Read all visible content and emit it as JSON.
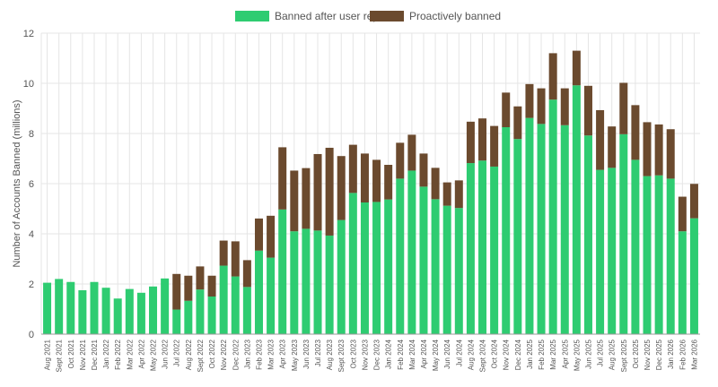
{
  "chart_data": {
    "type": "bar",
    "stacked": true,
    "ylabel": "Number of Accounts Banned (millions)",
    "xlabel": "",
    "title": "",
    "ylim": [
      0,
      12
    ],
    "yticks": [
      0,
      2,
      4,
      6,
      8,
      10,
      12
    ],
    "grid": true,
    "legend_position": "top-center",
    "colors": {
      "reports": "#2ecc71",
      "proactive": "#6b4a2e",
      "grid": "#e5e5e5",
      "axis": "#999999"
    },
    "categories": [
      "Aug 2021",
      "Sept 2021",
      "Oct 2021",
      "Nov 2021",
      "Dec 2021",
      "Jan 2022",
      "Feb 2022",
      "Mar 2022",
      "Apr 2022",
      "May 2022",
      "Jun 2022",
      "Jul 2022",
      "Aug 2022",
      "Sept 2022",
      "Oct 2022",
      "Nov 2022",
      "Dec 2022",
      "Jan 2023",
      "Feb 2023",
      "Mar 2023",
      "Apr 2023",
      "May 2023",
      "Jun 2023",
      "Jul 2023",
      "Aug 2023",
      "Sept 2023",
      "Oct 2023",
      "Nov 2023",
      "Dec 2023",
      "Jan 2024",
      "Feb 2024",
      "Mar 2024",
      "Apr 2024",
      "May 2024",
      "Jun 2024",
      "Jul 2024",
      "Aug 2024",
      "Sept 2024",
      "Oct 2024",
      "Nov 2024",
      "Dec 2024",
      "Jan 2025",
      "Feb 2025",
      "Mar 2025",
      "Apr 2025",
      "May 2025",
      "Jun 2025",
      "Jul 2025",
      "Aug 2025",
      "Sept 2025",
      "Oct 2025",
      "Nov 2025",
      "Dec 2025",
      "Jan 2026",
      "Feb 2026",
      "Mar 2026"
    ],
    "series": [
      {
        "name": "Banned after user reports",
        "values": [
          2.05,
          2.2,
          2.08,
          1.75,
          2.08,
          1.85,
          1.42,
          1.8,
          1.65,
          1.9,
          2.22,
          0.98,
          1.33,
          1.78,
          1.5,
          2.73,
          2.3,
          1.88,
          3.33,
          3.05,
          4.97,
          4.1,
          4.2,
          4.13,
          3.93,
          4.55,
          5.63,
          5.25,
          5.27,
          5.37,
          6.2,
          6.52,
          5.88,
          5.38,
          5.12,
          5.03,
          6.82,
          6.92,
          6.68,
          8.25,
          7.78,
          8.62,
          8.38,
          9.35,
          8.33,
          9.92,
          7.92,
          6.55,
          6.63,
          7.97,
          6.95,
          6.3,
          6.33,
          6.2,
          4.1,
          4.62
        ]
      },
      {
        "name": "Proactively banned",
        "values": [
          0,
          0,
          0,
          0,
          0,
          0,
          0,
          0,
          0,
          0,
          0,
          1.42,
          1.0,
          0.92,
          0.83,
          1.0,
          1.4,
          1.07,
          1.28,
          1.67,
          2.48,
          2.42,
          2.42,
          3.05,
          3.5,
          2.55,
          1.92,
          1.95,
          1.68,
          1.38,
          1.43,
          1.43,
          1.32,
          1.25,
          0.93,
          1.1,
          1.65,
          1.68,
          1.62,
          1.38,
          1.3,
          1.35,
          1.42,
          1.85,
          1.47,
          1.38,
          1.98,
          2.38,
          1.65,
          2.05,
          2.18,
          2.15,
          2.03,
          1.97,
          1.38,
          1.37
        ]
      }
    ]
  }
}
